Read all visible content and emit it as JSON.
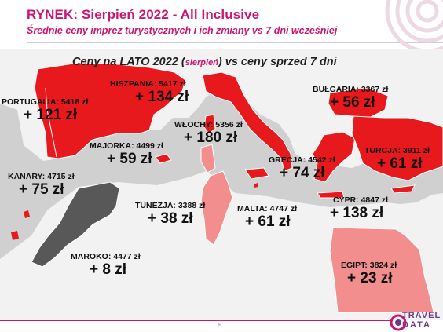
{
  "header": {
    "title": "RYNEK: Sierpień 2022 - All Inclusive",
    "subtitle": "Średnie ceny imprez turystycznych i ich zmiany vs 7 dni wcześniej"
  },
  "map": {
    "title_prefix": "Ceny na LATO 2022 (",
    "title_small": "sierpień",
    "title_suffix": ") vs ceny sprzed 7 dni",
    "colors": {
      "sea": "#d0d0d0",
      "land": "#f2f2f2",
      "up_strong": "#e8191c",
      "up_light": "#f28e8e",
      "neutral": "#585858",
      "border": "#ffffff"
    }
  },
  "destinations": [
    {
      "name": "PORTUGALIA: 5418 zł",
      "change": "+ 121 zł"
    },
    {
      "name": "HISZPANIA: 5417 zł",
      "change": "+ 134 zł"
    },
    {
      "name": "BUŁGARIA: 3367 zł",
      "change": "+ 56 zł"
    },
    {
      "name": "WŁOCHY: 5356 zł",
      "change": "+ 180 zł"
    },
    {
      "name": "MAJORKA: 4499 zł",
      "change": "+ 59 zł"
    },
    {
      "name": "TURCJA: 3911 zł",
      "change": "+ 61 zł"
    },
    {
      "name": "GRECJA: 4542 zł",
      "change": "+ 74 zł"
    },
    {
      "name": "KANARY: 4715 zł",
      "change": "+ 75 zł"
    },
    {
      "name": "TUNEZJA: 3388 zł",
      "change": "+ 38 zł"
    },
    {
      "name": "MALTA: 4747 zł",
      "change": "+ 61 zł"
    },
    {
      "name": "CYPR: 4847 zł",
      "change": "+ 138 zł"
    },
    {
      "name": "MAROKO: 4477 zł",
      "change": "+ 8 zł"
    },
    {
      "name": "EGIPT: 3824 zł",
      "change": "+ 23 zł"
    }
  ],
  "footer": {
    "page_number": "5"
  },
  "logo": {
    "line1": "TRAVEL",
    "line2": "DATA"
  }
}
